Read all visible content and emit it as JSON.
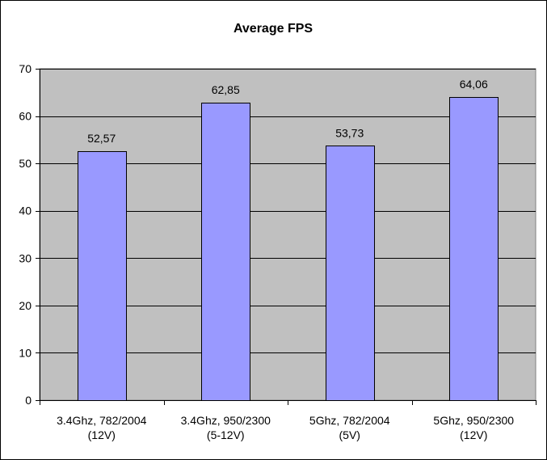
{
  "chart_data": {
    "type": "bar",
    "title": "Average FPS",
    "xlabel": "",
    "ylabel": "",
    "categories": [
      [
        "3.4Ghz, 782/2004",
        "(12V)"
      ],
      [
        "3.4Ghz, 950/2300",
        "(5-12V)"
      ],
      [
        "5Ghz, 782/2004",
        "(5V)"
      ],
      [
        "5Ghz, 950/2300",
        "(12V)"
      ]
    ],
    "values": [
      52.57,
      62.85,
      53.73,
      64.06
    ],
    "data_labels": [
      "52,57",
      "62,85",
      "53,73",
      "64,06"
    ],
    "ylim": [
      0,
      70
    ],
    "yticks": [
      0,
      10,
      20,
      30,
      40,
      50,
      60,
      70
    ],
    "grid": true,
    "legend": "none",
    "colors": {
      "bar_fill": "#9999ff",
      "bar_stroke": "#000000",
      "plot_background": "#c0c0c0",
      "gridline": "#000000"
    }
  }
}
